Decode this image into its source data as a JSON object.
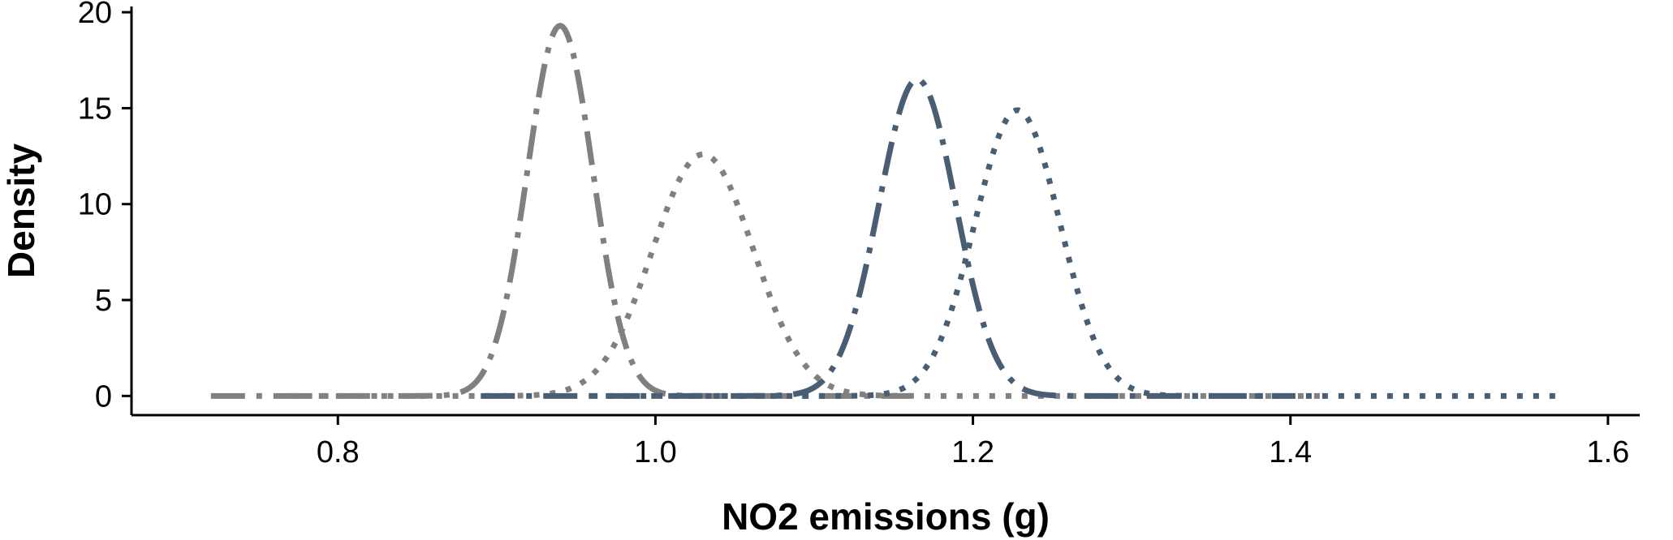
{
  "chart_data": {
    "type": "line",
    "title": "",
    "xlabel": "NO2 emissions (g)",
    "ylabel": "Density",
    "xlim": [
      0.67,
      1.62
    ],
    "ylim": [
      -1.0,
      20.3
    ],
    "xticks": [
      {
        "value": 0.8,
        "label": "0.8"
      },
      {
        "value": 1.0,
        "label": "1.0"
      },
      {
        "value": 1.2,
        "label": "1.2"
      },
      {
        "value": 1.4,
        "label": "1.4"
      },
      {
        "value": 1.6,
        "label": "1.6"
      }
    ],
    "yticks": [
      {
        "value": 0,
        "label": "0"
      },
      {
        "value": 5,
        "label": "5"
      },
      {
        "value": 10,
        "label": "10"
      },
      {
        "value": 15,
        "label": "15"
      },
      {
        "value": 20,
        "label": "20"
      }
    ],
    "grid": false,
    "legend": "none",
    "series": [
      {
        "color": "#808080",
        "style": "dashdot",
        "distribution": "normal",
        "mean": 0.94,
        "peak": 19.3,
        "x_range": [
          0.72,
          1.16
        ]
      },
      {
        "color": "#808080",
        "style": "dotted",
        "distribution": "normal",
        "mean": 1.03,
        "peak": 12.6,
        "x_range": [
          0.77,
          1.42
        ]
      },
      {
        "color": "#4a5e73",
        "style": "dashdot",
        "distribution": "normal",
        "mean": 1.165,
        "peak": 16.5,
        "x_range": [
          0.89,
          1.4
        ]
      },
      {
        "color": "#4a5e73",
        "style": "dotted",
        "distribution": "normal",
        "mean": 1.228,
        "peak": 14.9,
        "x_range": [
          0.96,
          1.57
        ]
      }
    ]
  }
}
